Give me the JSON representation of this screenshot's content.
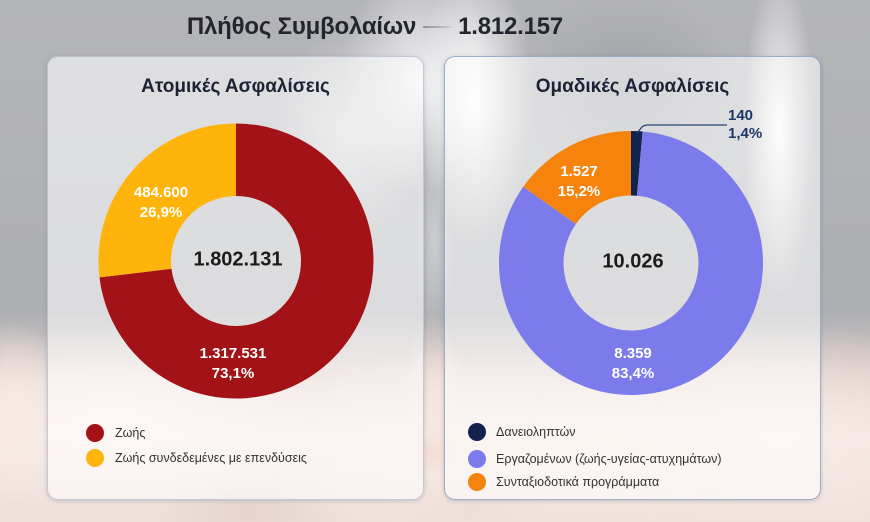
{
  "title": {
    "label": "Πλήθος Συμβολαίων",
    "value": "1.812.157"
  },
  "chart_data": [
    {
      "type": "pie",
      "title": "Ατομικές Ασφαλίσεις",
      "center_total": "1.802.131",
      "legend_position": "bottom-left",
      "slices": [
        {
          "label": "Ζωής",
          "value": 1317531,
          "value_text": "1.317.531",
          "pct": 73.1,
          "pct_text": "73,1%",
          "color": "#A21216"
        },
        {
          "label": "Ζωής συνδεδεμένες με επενδύσεις",
          "value": 484600,
          "value_text": "484.600",
          "pct": 26.9,
          "pct_text": "26,9%",
          "color": "#FEB40A"
        }
      ]
    },
    {
      "type": "pie",
      "title": "Ομαδικές Ασφαλίσεις",
      "center_total": "10.026",
      "legend_position": "bottom-left",
      "slices": [
        {
          "label": "Δανειοληπτών",
          "value": 140,
          "value_text": "140",
          "pct": 1.4,
          "pct_text": "1,4%",
          "color": "#14234E"
        },
        {
          "label": "Εργαζομένων (ζωής-υγείας-ατυχημάτων)",
          "value": 8359,
          "value_text": "8.359",
          "pct": 83.4,
          "pct_text": "83,4%",
          "color": "#7C7BEB"
        },
        {
          "label": "Συνταξιοδοτικά προγράμματα",
          "value": 1527,
          "value_text": "1.527",
          "pct": 15.2,
          "pct_text": "15,2%",
          "color": "#F6830D"
        }
      ]
    }
  ]
}
